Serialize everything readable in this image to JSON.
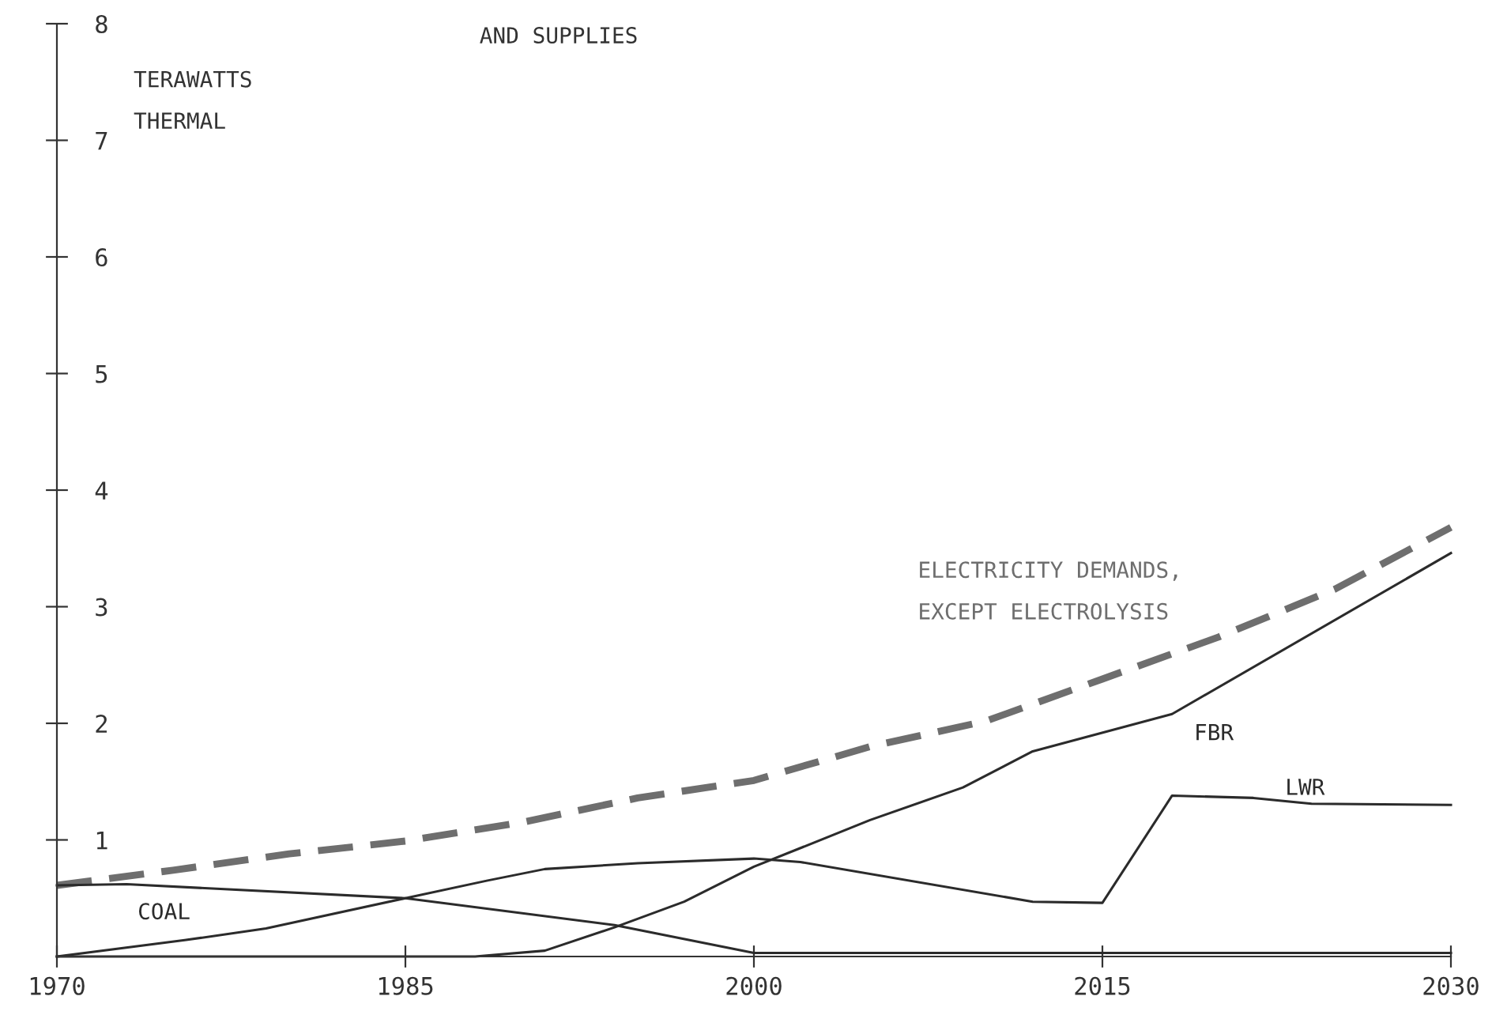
{
  "chart_data": {
    "type": "line",
    "title": "AND SUPPLIES",
    "ylabel": "TERAWATTS\nTHERMAL",
    "xlim": [
      1970,
      2030
    ],
    "xticks": [
      1970,
      1985,
      2000,
      2015,
      2030
    ],
    "ylim": [
      0,
      8
    ],
    "yticks": [
      1,
      2,
      3,
      4,
      5,
      6,
      7,
      8
    ],
    "grid": false,
    "legend": false,
    "marker": "none",
    "series": [
      {
        "name": "ELECTRICITY DEMANDS,\nEXCEPT ELECTROLYSIS",
        "color": "#6e6e6e",
        "line_style": "dashed",
        "x": [
          1970,
          1975,
          1980,
          1985,
          1990,
          1995,
          2000,
          2005,
          2010,
          2015,
          2020,
          2025,
          2030
        ],
        "values": [
          0.61,
          0.74,
          0.88,
          0.99,
          1.15,
          1.36,
          1.51,
          1.8,
          2.02,
          2.38,
          2.74,
          3.15,
          3.68
        ]
      },
      {
        "name": "FBR",
        "color": "#2b2b2b",
        "line_style": "solid",
        "x": [
          1970,
          1988,
          1991,
          1994,
          1997,
          2000,
          2005,
          2009,
          2012,
          2018,
          2030
        ],
        "values": [
          0,
          0,
          0.05,
          0.25,
          0.47,
          0.77,
          1.17,
          1.45,
          1.76,
          2.08,
          3.46
        ]
      },
      {
        "name": "LWR",
        "color": "#2b2b2b",
        "line_style": "solid",
        "x": [
          1970,
          1975.5,
          1979,
          1985,
          1988.5,
          1991,
          1995,
          2000,
          2002,
          2012,
          2015,
          2018,
          2021.5,
          2024,
          2030
        ],
        "values": [
          0,
          0.14,
          0.24,
          0.5,
          0.65,
          0.75,
          0.8,
          0.84,
          0.81,
          0.47,
          0.46,
          1.38,
          1.36,
          1.31,
          1.3
        ]
      },
      {
        "name": "COAL",
        "color": "#2b2b2b",
        "line_style": "solid",
        "x": [
          1970,
          1973,
          1985,
          1994,
          2000,
          2030
        ],
        "values": [
          0.61,
          0.62,
          0.5,
          0.27,
          0.03,
          0.03
        ]
      }
    ]
  }
}
